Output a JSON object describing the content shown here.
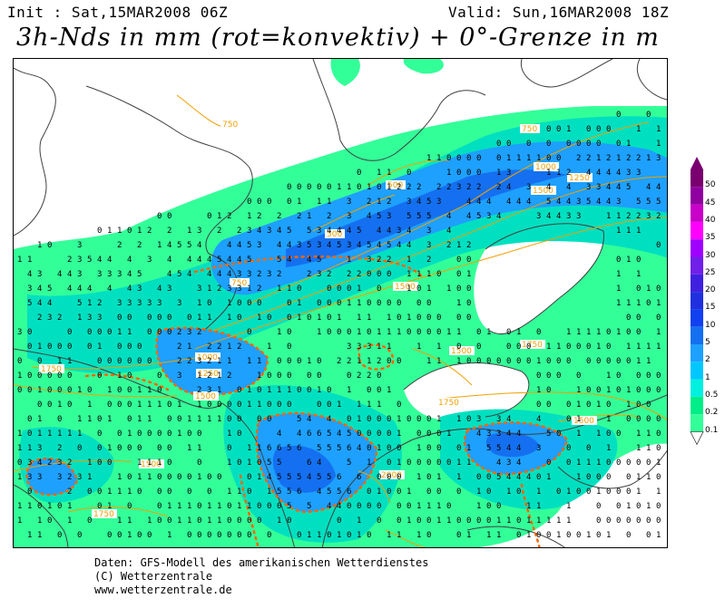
{
  "header": {
    "init": "Init : Sat,15MAR2008 06Z",
    "valid": "Valid: Sun,16MAR2008 18Z",
    "title": "3h-Nds in mm (rot=konvektiv) + 0°-Grenze in m"
  },
  "colors": {
    "land_bg": "#ffffff",
    "coast": "#404040",
    "isoline": "#f0a000",
    "convective": "#ff6600",
    "precip_light": "#33ff99",
    "precip_02": "#00ee88",
    "precip_05": "#00e0c0",
    "precip_1": "#00c8ff",
    "precip_2": "#1ea0ff",
    "precip_5": "#1470f0",
    "precip_10": "#1450d0"
  },
  "legend": {
    "levels": [
      "50",
      "45",
      "40",
      "35",
      "30",
      "25",
      "20",
      "15",
      "10",
      "5",
      "2",
      "1",
      "0.5",
      "0.2",
      "0.1"
    ],
    "colors": [
      "#7a0070",
      "#9000a0",
      "#c800c8",
      "#ff00ff",
      "#a000ff",
      "#7020e8",
      "#4020e0",
      "#2030e0",
      "#1040f0",
      "#1470f0",
      "#1ea0ff",
      "#00c8ff",
      "#00f0e0",
      "#00ee88",
      "#33ff99"
    ]
  },
  "isolines": [
    {
      "label": "750"
    },
    {
      "label": "750"
    },
    {
      "label": "1000"
    },
    {
      "label": "1250"
    },
    {
      "label": "1500"
    },
    {
      "label": "500"
    },
    {
      "label": "500"
    },
    {
      "label": "750"
    },
    {
      "label": "1500"
    },
    {
      "label": "1000"
    },
    {
      "label": "1250"
    },
    {
      "label": "1500"
    },
    {
      "label": "1750"
    },
    {
      "label": "1500"
    },
    {
      "label": "1750"
    },
    {
      "label": "1750"
    },
    {
      "label": "1500"
    },
    {
      "label": "1500"
    },
    {
      "label": "1750"
    },
    {
      "label": "2000"
    }
  ],
  "footer": {
    "line1": "Daten: GFS-Modell des amerikanischen Wetterdienstes",
    "line2": "(C) Wetterzentrale",
    "line3": "www.wetterzentrale.de"
  }
}
